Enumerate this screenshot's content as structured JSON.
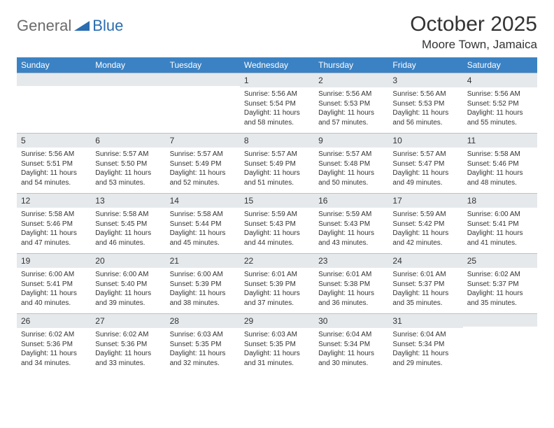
{
  "logo": {
    "text_general": "General",
    "text_blue": "Blue"
  },
  "title": "October 2025",
  "location": "Moore Town, Jamaica",
  "colors": {
    "header_bg": "#3b82c4",
    "header_text": "#ffffff",
    "daynum_bg": "#e6e9ec",
    "text": "#333333",
    "border": "#c0c0c0",
    "logo_gray": "#6b6b6b",
    "logo_blue": "#2a6db0"
  },
  "typography": {
    "title_fontsize": 30,
    "location_fontsize": 17,
    "dayheader_fontsize": 12,
    "daynum_fontsize": 12,
    "body_fontsize": 10
  },
  "day_headers": [
    "Sunday",
    "Monday",
    "Tuesday",
    "Wednesday",
    "Thursday",
    "Friday",
    "Saturday"
  ],
  "weeks": [
    [
      {
        "date": "",
        "sunrise": "",
        "sunset": "",
        "daylight": ""
      },
      {
        "date": "",
        "sunrise": "",
        "sunset": "",
        "daylight": ""
      },
      {
        "date": "",
        "sunrise": "",
        "sunset": "",
        "daylight": ""
      },
      {
        "date": "1",
        "sunrise": "Sunrise: 5:56 AM",
        "sunset": "Sunset: 5:54 PM",
        "daylight": "Daylight: 11 hours and 58 minutes."
      },
      {
        "date": "2",
        "sunrise": "Sunrise: 5:56 AM",
        "sunset": "Sunset: 5:53 PM",
        "daylight": "Daylight: 11 hours and 57 minutes."
      },
      {
        "date": "3",
        "sunrise": "Sunrise: 5:56 AM",
        "sunset": "Sunset: 5:53 PM",
        "daylight": "Daylight: 11 hours and 56 minutes."
      },
      {
        "date": "4",
        "sunrise": "Sunrise: 5:56 AM",
        "sunset": "Sunset: 5:52 PM",
        "daylight": "Daylight: 11 hours and 55 minutes."
      }
    ],
    [
      {
        "date": "5",
        "sunrise": "Sunrise: 5:56 AM",
        "sunset": "Sunset: 5:51 PM",
        "daylight": "Daylight: 11 hours and 54 minutes."
      },
      {
        "date": "6",
        "sunrise": "Sunrise: 5:57 AM",
        "sunset": "Sunset: 5:50 PM",
        "daylight": "Daylight: 11 hours and 53 minutes."
      },
      {
        "date": "7",
        "sunrise": "Sunrise: 5:57 AM",
        "sunset": "Sunset: 5:49 PM",
        "daylight": "Daylight: 11 hours and 52 minutes."
      },
      {
        "date": "8",
        "sunrise": "Sunrise: 5:57 AM",
        "sunset": "Sunset: 5:49 PM",
        "daylight": "Daylight: 11 hours and 51 minutes."
      },
      {
        "date": "9",
        "sunrise": "Sunrise: 5:57 AM",
        "sunset": "Sunset: 5:48 PM",
        "daylight": "Daylight: 11 hours and 50 minutes."
      },
      {
        "date": "10",
        "sunrise": "Sunrise: 5:57 AM",
        "sunset": "Sunset: 5:47 PM",
        "daylight": "Daylight: 11 hours and 49 minutes."
      },
      {
        "date": "11",
        "sunrise": "Sunrise: 5:58 AM",
        "sunset": "Sunset: 5:46 PM",
        "daylight": "Daylight: 11 hours and 48 minutes."
      }
    ],
    [
      {
        "date": "12",
        "sunrise": "Sunrise: 5:58 AM",
        "sunset": "Sunset: 5:46 PM",
        "daylight": "Daylight: 11 hours and 47 minutes."
      },
      {
        "date": "13",
        "sunrise": "Sunrise: 5:58 AM",
        "sunset": "Sunset: 5:45 PM",
        "daylight": "Daylight: 11 hours and 46 minutes."
      },
      {
        "date": "14",
        "sunrise": "Sunrise: 5:58 AM",
        "sunset": "Sunset: 5:44 PM",
        "daylight": "Daylight: 11 hours and 45 minutes."
      },
      {
        "date": "15",
        "sunrise": "Sunrise: 5:59 AM",
        "sunset": "Sunset: 5:43 PM",
        "daylight": "Daylight: 11 hours and 44 minutes."
      },
      {
        "date": "16",
        "sunrise": "Sunrise: 5:59 AM",
        "sunset": "Sunset: 5:43 PM",
        "daylight": "Daylight: 11 hours and 43 minutes."
      },
      {
        "date": "17",
        "sunrise": "Sunrise: 5:59 AM",
        "sunset": "Sunset: 5:42 PM",
        "daylight": "Daylight: 11 hours and 42 minutes."
      },
      {
        "date": "18",
        "sunrise": "Sunrise: 6:00 AM",
        "sunset": "Sunset: 5:41 PM",
        "daylight": "Daylight: 11 hours and 41 minutes."
      }
    ],
    [
      {
        "date": "19",
        "sunrise": "Sunrise: 6:00 AM",
        "sunset": "Sunset: 5:41 PM",
        "daylight": "Daylight: 11 hours and 40 minutes."
      },
      {
        "date": "20",
        "sunrise": "Sunrise: 6:00 AM",
        "sunset": "Sunset: 5:40 PM",
        "daylight": "Daylight: 11 hours and 39 minutes."
      },
      {
        "date": "21",
        "sunrise": "Sunrise: 6:00 AM",
        "sunset": "Sunset: 5:39 PM",
        "daylight": "Daylight: 11 hours and 38 minutes."
      },
      {
        "date": "22",
        "sunrise": "Sunrise: 6:01 AM",
        "sunset": "Sunset: 5:39 PM",
        "daylight": "Daylight: 11 hours and 37 minutes."
      },
      {
        "date": "23",
        "sunrise": "Sunrise: 6:01 AM",
        "sunset": "Sunset: 5:38 PM",
        "daylight": "Daylight: 11 hours and 36 minutes."
      },
      {
        "date": "24",
        "sunrise": "Sunrise: 6:01 AM",
        "sunset": "Sunset: 5:37 PM",
        "daylight": "Daylight: 11 hours and 35 minutes."
      },
      {
        "date": "25",
        "sunrise": "Sunrise: 6:02 AM",
        "sunset": "Sunset: 5:37 PM",
        "daylight": "Daylight: 11 hours and 35 minutes."
      }
    ],
    [
      {
        "date": "26",
        "sunrise": "Sunrise: 6:02 AM",
        "sunset": "Sunset: 5:36 PM",
        "daylight": "Daylight: 11 hours and 34 minutes."
      },
      {
        "date": "27",
        "sunrise": "Sunrise: 6:02 AM",
        "sunset": "Sunset: 5:36 PM",
        "daylight": "Daylight: 11 hours and 33 minutes."
      },
      {
        "date": "28",
        "sunrise": "Sunrise: 6:03 AM",
        "sunset": "Sunset: 5:35 PM",
        "daylight": "Daylight: 11 hours and 32 minutes."
      },
      {
        "date": "29",
        "sunrise": "Sunrise: 6:03 AM",
        "sunset": "Sunset: 5:35 PM",
        "daylight": "Daylight: 11 hours and 31 minutes."
      },
      {
        "date": "30",
        "sunrise": "Sunrise: 6:04 AM",
        "sunset": "Sunset: 5:34 PM",
        "daylight": "Daylight: 11 hours and 30 minutes."
      },
      {
        "date": "31",
        "sunrise": "Sunrise: 6:04 AM",
        "sunset": "Sunset: 5:34 PM",
        "daylight": "Daylight: 11 hours and 29 minutes."
      },
      {
        "date": "",
        "sunrise": "",
        "sunset": "",
        "daylight": ""
      }
    ]
  ]
}
